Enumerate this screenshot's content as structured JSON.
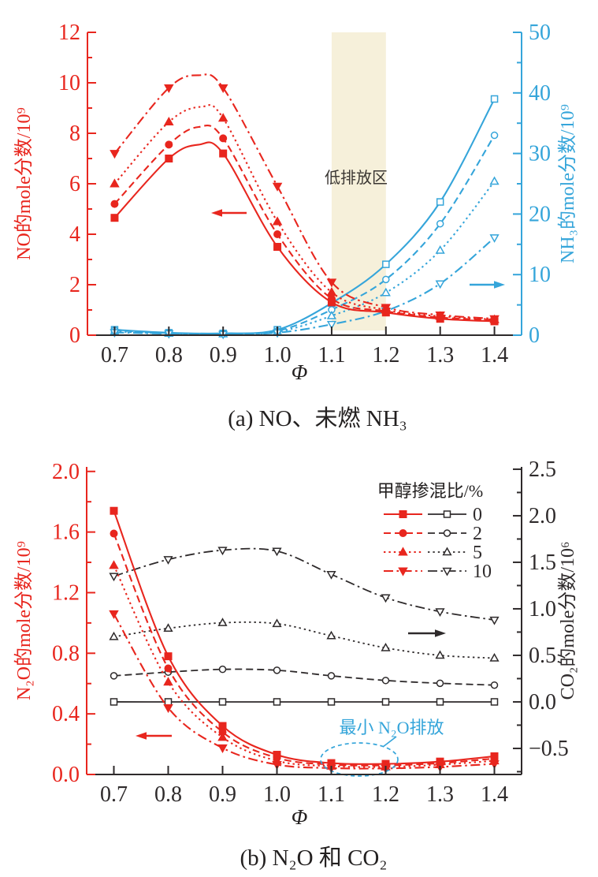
{
  "figure": {
    "background": "#ffffff",
    "description": "两幅排放特性曲线图"
  },
  "colors": {
    "red": "#e8261e",
    "blue": "#35a5da",
    "black": "#2e2a2b",
    "band": "#f6f0da",
    "white": "#ffffff"
  },
  "chart_data": [
    {
      "id": "a",
      "type": "line",
      "caption": "(a) NO、未燃 NH₃",
      "xlabel": "Φ",
      "x": [
        0.7,
        0.8,
        0.9,
        1.0,
        1.1,
        1.2,
        1.3,
        1.4
      ],
      "x_tick_labels": [
        "0.7",
        "0.8",
        "0.9",
        "1.0",
        "1.1",
        "1.2",
        "1.3",
        "1.4"
      ],
      "x_range": [
        0.65,
        1.45
      ],
      "left_axis": {
        "label": "NO的mole分数/10⁹",
        "range": [
          0,
          12
        ],
        "tick_values": [
          0,
          2,
          4,
          6,
          8,
          10,
          12
        ],
        "tick_labels": [
          "0",
          "2",
          "4",
          "6",
          "8",
          "10",
          "12"
        ],
        "minor_ticks": [
          1,
          3,
          5,
          7,
          9,
          11
        ],
        "color": "#e8261e"
      },
      "right_axis": {
        "label": "NH₃的mole分数/10⁹",
        "range": [
          0,
          50
        ],
        "tick_values": [
          0,
          10,
          20,
          30,
          40,
          50
        ],
        "tick_labels": [
          "0",
          "10",
          "20",
          "30",
          "40",
          "50"
        ],
        "minor_ticks": [
          5,
          15,
          25,
          35,
          45
        ],
        "color": "#35a5da"
      },
      "band": {
        "x_from": 1.1,
        "x_to": 1.2,
        "label": "低排放区",
        "color": "#f6f0da"
      },
      "series": [
        {
          "group": "NO",
          "blend": "0",
          "axis": "left",
          "color": "#e8261e",
          "style": "solid",
          "marker": "square",
          "marker_fill": "filled",
          "values": [
            4.65,
            7.0,
            7.2,
            3.5,
            1.3,
            0.9,
            0.65,
            0.55
          ],
          "peak": {
            "x": 0.855,
            "y": 7.55
          }
        },
        {
          "group": "NO",
          "blend": "2",
          "axis": "left",
          "color": "#e8261e",
          "style": "dashed",
          "marker": "circle",
          "marker_fill": "filled",
          "values": [
            5.2,
            7.55,
            7.8,
            4.0,
            1.45,
            0.95,
            0.7,
            0.6
          ],
          "peak": {
            "x": 0.855,
            "y": 8.25
          }
        },
        {
          "group": "NO",
          "blend": "5",
          "axis": "left",
          "color": "#e8261e",
          "style": "dotted",
          "marker": "triangle-up",
          "marker_fill": "filled",
          "values": [
            6.0,
            8.45,
            8.6,
            4.5,
            1.7,
            1.0,
            0.75,
            0.62
          ],
          "peak": {
            "x": 0.86,
            "y": 9.05
          }
        },
        {
          "group": "NO",
          "blend": "10",
          "axis": "left",
          "color": "#e8261e",
          "style": "dashdot",
          "marker": "triangle-down",
          "marker_fill": "filled",
          "values": [
            7.2,
            9.8,
            9.8,
            5.9,
            2.1,
            1.1,
            0.8,
            0.65
          ],
          "peak": {
            "x": 0.855,
            "y": 10.3
          }
        },
        {
          "group": "NH3",
          "blend": "0",
          "axis": "right",
          "color": "#35a5da",
          "style": "solid",
          "marker": "square",
          "marker_fill": "open",
          "values": [
            0.9,
            0.4,
            0.3,
            0.9,
            5.3,
            11.7,
            22.0,
            39.0
          ]
        },
        {
          "group": "NH3",
          "blend": "2",
          "axis": "right",
          "color": "#35a5da",
          "style": "dashed",
          "marker": "circle",
          "marker_fill": "open",
          "values": [
            0.8,
            0.35,
            0.25,
            0.7,
            4.2,
            9.2,
            18.4,
            33.0
          ]
        },
        {
          "group": "NH3",
          "blend": "5",
          "axis": "right",
          "color": "#35a5da",
          "style": "dotted",
          "marker": "triangle-up",
          "marker_fill": "open",
          "values": [
            0.6,
            0.3,
            0.2,
            0.55,
            3.2,
            7.0,
            14.0,
            25.4
          ]
        },
        {
          "group": "NH3",
          "blend": "10",
          "axis": "right",
          "color": "#35a5da",
          "style": "dashdot",
          "marker": "triangle-down",
          "marker_fill": "open",
          "values": [
            0.45,
            0.25,
            0.15,
            0.4,
            1.8,
            4.0,
            8.5,
            16.1
          ]
        }
      ],
      "arrows": [
        {
          "color": "#e8261e",
          "dir": "left",
          "refers_to": "NO-left-axis"
        },
        {
          "color": "#35a5da",
          "dir": "right",
          "refers_to": "NH3-right-axis"
        }
      ]
    },
    {
      "id": "b",
      "type": "line",
      "caption": "(b) N₂O 和 CO₂",
      "xlabel": "Φ",
      "x": [
        0.7,
        0.8,
        0.9,
        1.0,
        1.1,
        1.2,
        1.3,
        1.4
      ],
      "x_tick_labels": [
        "0.7",
        "0.8",
        "0.9",
        "1.0",
        "1.1",
        "1.2",
        "1.3",
        "1.4"
      ],
      "x_range": [
        0.65,
        1.45
      ],
      "left_axis": {
        "label": "N₂O的mole分数/10⁹",
        "range": [
          0,
          2.03
        ],
        "tick_values": [
          0,
          0.4,
          0.8,
          1.2,
          1.6,
          2.0
        ],
        "tick_labels": [
          "0.0",
          "0.4",
          "0.8",
          "1.2",
          "1.6",
          "2.0"
        ],
        "minor_ticks": [
          0.2,
          0.6,
          1.0,
          1.4,
          1.8
        ],
        "color": "#e8261e"
      },
      "right_axis": {
        "label": "CO₂的mole分数/10⁶",
        "range": [
          -0.78,
          2.525
        ],
        "tick_values": [
          -0.5,
          0.0,
          0.5,
          1.0,
          1.5,
          2.0,
          2.5
        ],
        "tick_labels": [
          "−0.5",
          "0.0",
          "0.5",
          "1.0",
          "1.5",
          "2.0",
          "2.5"
        ],
        "minor_ticks": [
          -0.75,
          -0.25,
          0.25,
          0.75,
          1.25,
          1.75,
          2.25
        ],
        "color": "#2e2a2b"
      },
      "legend": {
        "title": "甲醇掺混比/%",
        "entries": [
          "0",
          "2",
          "5",
          "10"
        ]
      },
      "annotation": {
        "text": "最小 N₂O排放",
        "color": "#35a5da"
      },
      "series": [
        {
          "group": "N2O",
          "blend": "0",
          "axis": "left",
          "color": "#e8261e",
          "style": "solid",
          "marker": "square",
          "marker_fill": "filled",
          "values": [
            1.74,
            0.78,
            0.32,
            0.13,
            0.075,
            0.07,
            0.085,
            0.12
          ]
        },
        {
          "group": "N2O",
          "blend": "2",
          "axis": "left",
          "color": "#e8261e",
          "style": "dashed",
          "marker": "circle",
          "marker_fill": "filled",
          "values": [
            1.59,
            0.7,
            0.28,
            0.11,
            0.065,
            0.06,
            0.075,
            0.105
          ]
        },
        {
          "group": "N2O",
          "blend": "5",
          "axis": "left",
          "color": "#e8261e",
          "style": "dotted",
          "marker": "triangle-up",
          "marker_fill": "filled",
          "values": [
            1.38,
            0.61,
            0.245,
            0.09,
            0.055,
            0.05,
            0.065,
            0.09
          ]
        },
        {
          "group": "N2O",
          "blend": "10",
          "axis": "left",
          "color": "#e8261e",
          "style": "dashdot",
          "marker": "triangle-down",
          "marker_fill": "filled",
          "values": [
            1.06,
            0.44,
            0.175,
            0.065,
            0.042,
            0.04,
            0.05,
            0.07
          ]
        },
        {
          "group": "CO2",
          "blend": "0",
          "axis": "right",
          "color": "#2e2a2b",
          "style": "solid",
          "marker": "square",
          "marker_fill": "open",
          "values": [
            0,
            0,
            0,
            0,
            0,
            0,
            0,
            0
          ]
        },
        {
          "group": "CO2",
          "blend": "2",
          "axis": "right",
          "color": "#2e2a2b",
          "style": "dashed",
          "marker": "circle",
          "marker_fill": "open",
          "values": [
            0.28,
            0.32,
            0.35,
            0.34,
            0.28,
            0.23,
            0.2,
            0.18
          ]
        },
        {
          "group": "CO2",
          "blend": "5",
          "axis": "right",
          "color": "#2e2a2b",
          "style": "dotted",
          "marker": "triangle-up",
          "marker_fill": "open",
          "values": [
            0.7,
            0.79,
            0.85,
            0.84,
            0.71,
            0.58,
            0.5,
            0.47
          ]
        },
        {
          "group": "CO2",
          "blend": "10",
          "axis": "right",
          "color": "#2e2a2b",
          "style": "dashdot",
          "marker": "triangle-down",
          "marker_fill": "open",
          "values": [
            1.35,
            1.53,
            1.63,
            1.62,
            1.37,
            1.12,
            0.97,
            0.88
          ]
        }
      ],
      "arrows": [
        {
          "color": "#e8261e",
          "dir": "left",
          "refers_to": "N2O-left-axis"
        },
        {
          "color": "#2e2a2b",
          "dir": "right",
          "refers_to": "CO2-right-axis"
        }
      ]
    }
  ]
}
